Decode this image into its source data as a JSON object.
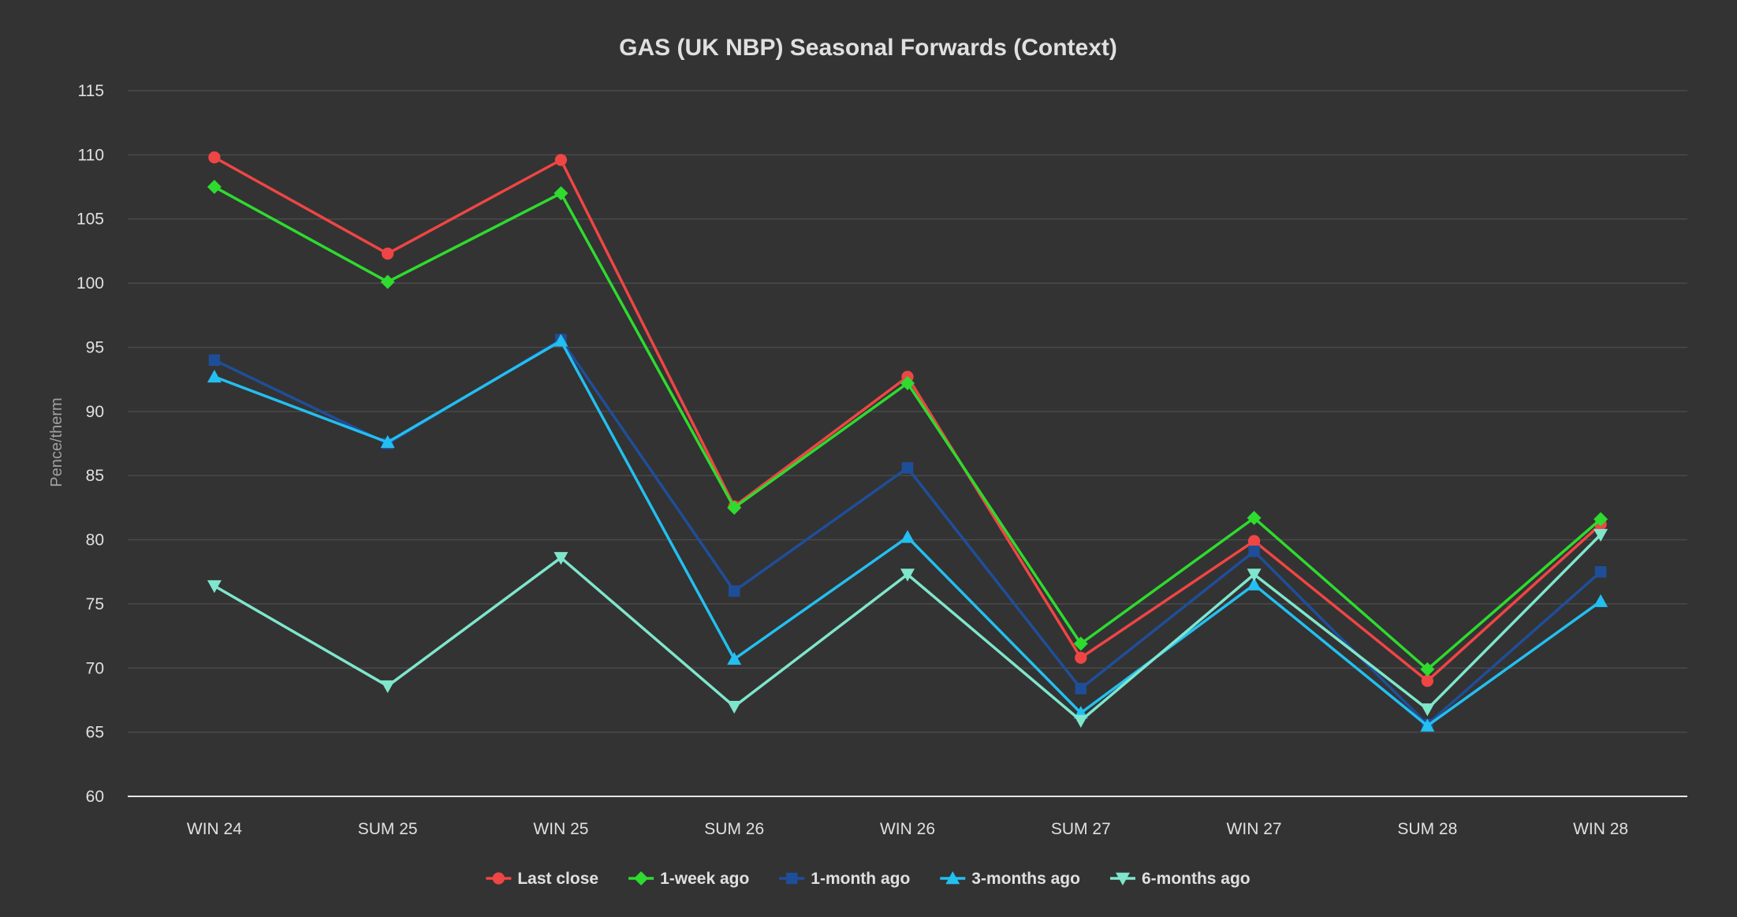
{
  "chart_data": {
    "type": "line",
    "title": "GAS (UK NBP) Seasonal Forwards (Context)",
    "xlabel": "",
    "ylabel": "Pence/therm",
    "ylim": [
      60,
      115
    ],
    "yticks": [
      60,
      65,
      70,
      75,
      80,
      85,
      90,
      95,
      100,
      105,
      110,
      115
    ],
    "grid": true,
    "legend_position": "bottom",
    "categories": [
      "WIN 24",
      "SUM 25",
      "WIN 25",
      "SUM 26",
      "WIN 26",
      "SUM 27",
      "WIN 27",
      "SUM 28",
      "WIN 28"
    ],
    "series": [
      {
        "name": "Last close",
        "color": "#f04545",
        "marker": "circle",
        "values": [
          109.8,
          102.3,
          109.6,
          82.6,
          92.7,
          70.8,
          79.9,
          69.0,
          81.2
        ]
      },
      {
        "name": "1-week ago",
        "color": "#2edb2e",
        "marker": "diamond",
        "values": [
          107.5,
          100.1,
          107.0,
          82.5,
          92.2,
          71.9,
          81.7,
          69.9,
          81.6
        ]
      },
      {
        "name": "1-month ago",
        "color": "#1f4e99",
        "marker": "square",
        "values": [
          94.0,
          87.5,
          95.6,
          76.0,
          85.6,
          68.4,
          79.1,
          65.6,
          77.5
        ]
      },
      {
        "name": "3-months ago",
        "color": "#23bff0",
        "marker": "triangle",
        "values": [
          92.7,
          87.6,
          95.5,
          70.7,
          80.2,
          66.5,
          76.5,
          65.5,
          75.2
        ]
      },
      {
        "name": "6-months ago",
        "color": "#7fe6cc",
        "marker": "triangle-down",
        "values": [
          76.4,
          68.6,
          78.6,
          67.0,
          77.3,
          65.9,
          77.3,
          66.8,
          80.4
        ]
      }
    ]
  }
}
